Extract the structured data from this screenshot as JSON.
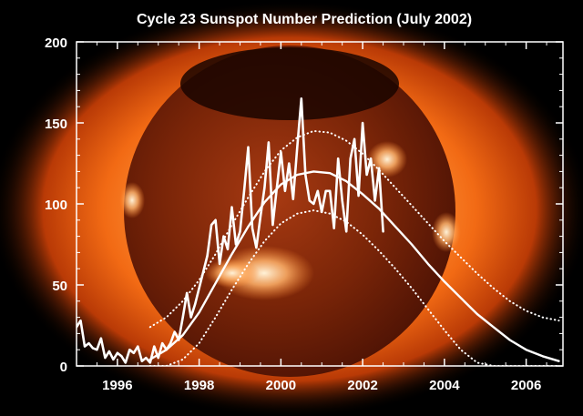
{
  "chart_data": {
    "type": "line",
    "title": "Cycle 23 Sunspot Number Prediction (July 2002)",
    "xlim": [
      1995.0,
      2006.9
    ],
    "ylim": [
      0,
      200
    ],
    "x_ticks": [
      1996,
      1998,
      2000,
      2002,
      2004,
      2006
    ],
    "y_ticks": [
      0,
      50,
      100,
      150,
      200
    ],
    "grid": false,
    "background": "X-ray image of the Sun (orange corona) behind the plot",
    "series": [
      {
        "role": "observed",
        "style": "solid",
        "x": [
          1995.0,
          1995.1,
          1995.2,
          1995.3,
          1995.4,
          1995.5,
          1995.6,
          1995.7,
          1995.8,
          1995.9,
          1996.0,
          1996.1,
          1996.2,
          1996.3,
          1996.4,
          1996.5,
          1996.6,
          1996.7,
          1996.8,
          1996.9,
          1997.0,
          1997.1,
          1997.2,
          1997.3,
          1997.4,
          1997.5,
          1997.6,
          1997.7,
          1997.8,
          1997.9,
          1998.0,
          1998.1,
          1998.2,
          1998.3,
          1998.4,
          1998.5,
          1998.6,
          1998.7,
          1998.8,
          1998.9,
          1999.0,
          1999.1,
          1999.2,
          1999.3,
          1999.4,
          1999.5,
          1999.6,
          1999.7,
          1999.8,
          1999.9,
          2000.0,
          2000.1,
          2000.2,
          2000.3,
          2000.4,
          2000.5,
          2000.6,
          2000.7,
          2000.8,
          2000.9,
          2001.0,
          2001.1,
          2001.2,
          2001.3,
          2001.4,
          2001.5,
          2001.6,
          2001.7,
          2001.8,
          2001.9,
          2002.0,
          2002.1,
          2002.2,
          2002.3,
          2002.4,
          2002.5
        ],
        "values": [
          24,
          28,
          12,
          14,
          11,
          10,
          17,
          5,
          9,
          4,
          8,
          6,
          2,
          10,
          8,
          12,
          3,
          5,
          2,
          12,
          5,
          14,
          10,
          14,
          21,
          16,
          30,
          45,
          30,
          38,
          48,
          58,
          68,
          87,
          90,
          63,
          80,
          72,
          98,
          75,
          83,
          108,
          135,
          85,
          73,
          92,
          110,
          138,
          87,
          110,
          132,
          108,
          125,
          103,
          135,
          165,
          118,
          102,
          100,
          108,
          95,
          108,
          108,
          85,
          128,
          102,
          83,
          128,
          140,
          105,
          150,
          118,
          128,
          102,
          122,
          83
        ]
      },
      {
        "role": "prediction",
        "style": "solid",
        "x": [
          1996.8,
          1997.2,
          1997.6,
          1998.0,
          1998.4,
          1998.8,
          1999.2,
          1999.6,
          2000.0,
          2000.4,
          2000.8,
          2001.2,
          2001.6,
          2002.0,
          2002.4,
          2002.8,
          2003.2,
          2003.6,
          2004.0,
          2004.4,
          2004.8,
          2005.2,
          2005.6,
          2006.0,
          2006.4,
          2006.8
        ],
        "values": [
          4,
          10,
          19,
          33,
          51,
          69,
          86,
          101,
          112,
          118,
          120,
          119,
          114,
          106,
          97,
          86,
          75,
          63,
          52,
          42,
          32,
          24,
          16,
          10,
          6,
          3
        ]
      },
      {
        "role": "upper-bound",
        "style": "dotted",
        "x": [
          1996.8,
          1997.2,
          1997.6,
          1998.0,
          1998.4,
          1998.8,
          1999.2,
          1999.6,
          2000.0,
          2000.4,
          2000.8,
          2001.2,
          2001.6,
          2002.0,
          2002.4,
          2002.8,
          2003.2,
          2003.6,
          2004.0,
          2004.4,
          2004.8,
          2005.2,
          2005.6,
          2006.0,
          2006.4,
          2006.8
        ],
        "values": [
          24,
          30,
          40,
          53,
          69,
          87,
          104,
          120,
          133,
          141,
          145,
          144,
          139,
          131,
          121,
          110,
          99,
          88,
          77,
          67,
          57,
          48,
          40,
          34,
          30,
          28
        ]
      },
      {
        "role": "lower-bound",
        "style": "dotted",
        "x": [
          1996.8,
          1997.2,
          1997.6,
          1998.0,
          1998.4,
          1998.8,
          1999.2,
          1999.6,
          2000.0,
          2000.4,
          2000.8,
          2001.2,
          2001.6,
          2002.0,
          2002.4,
          2002.8,
          2003.2,
          2003.6,
          2004.0,
          2004.4,
          2004.8,
          2005.2,
          2005.6,
          2006.0,
          2006.4,
          2006.8
        ],
        "values": [
          0,
          0,
          4,
          14,
          30,
          47,
          63,
          77,
          88,
          94,
          96,
          94,
          89,
          81,
          71,
          60,
          48,
          35,
          22,
          10,
          2,
          0,
          0,
          0,
          0,
          0
        ]
      }
    ]
  }
}
